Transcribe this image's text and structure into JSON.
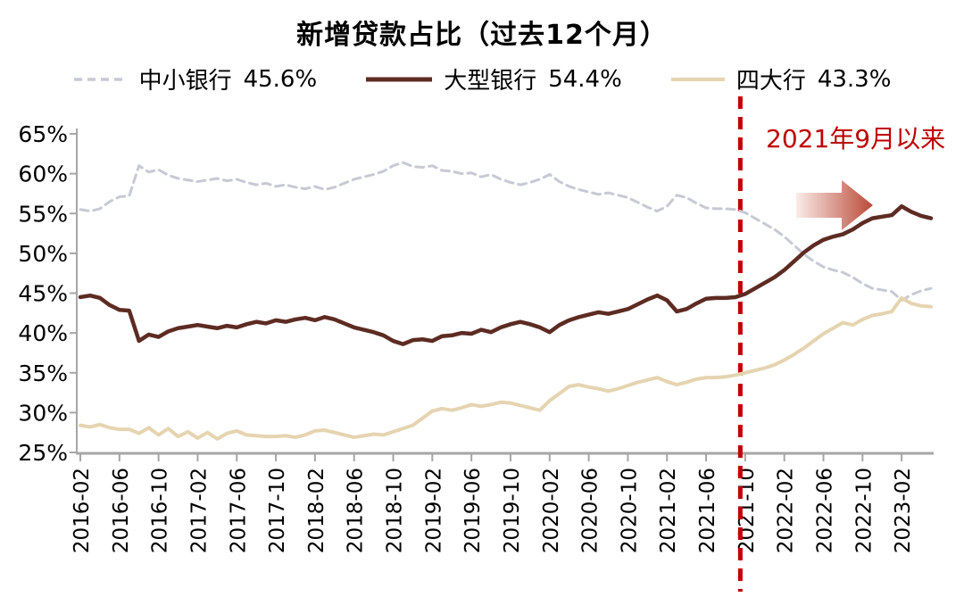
{
  "title": "新增贷款占比（过去12个月）",
  "legend": [
    {
      "label": "中小银行",
      "value": "45.6%"
    },
    {
      "label": "大型银行",
      "value": "54.4%"
    },
    {
      "label": "四大行",
      "value": "43.3%"
    }
  ],
  "colors": {
    "small_mid_banks": "#c7c9d4",
    "large_banks": "#5d2b22",
    "big_four_banks": "#e5d4b0",
    "event_red": "#c00000",
    "axis_gray": "#a6a6a6"
  },
  "chart_data": {
    "type": "line",
    "title": "新增贷款占比（过去12个月）",
    "xlabel": "",
    "ylabel": "",
    "ylim": [
      25,
      65
    ],
    "grid": false,
    "legend_position": "top",
    "y_tick_labels": [
      "65%",
      "60%",
      "55%",
      "50%",
      "45%",
      "40%",
      "35%",
      "30%",
      "25%"
    ],
    "x": [
      "2016-02",
      "2016-03",
      "2016-04",
      "2016-05",
      "2016-06",
      "2016-07",
      "2016-08",
      "2016-09",
      "2016-10",
      "2016-11",
      "2016-12",
      "2017-01",
      "2017-02",
      "2017-03",
      "2017-04",
      "2017-05",
      "2017-06",
      "2017-07",
      "2017-08",
      "2017-09",
      "2017-10",
      "2017-11",
      "2017-12",
      "2018-01",
      "2018-02",
      "2018-03",
      "2018-04",
      "2018-05",
      "2018-06",
      "2018-07",
      "2018-08",
      "2018-09",
      "2018-10",
      "2018-11",
      "2018-12",
      "2019-01",
      "2019-02",
      "2019-03",
      "2019-04",
      "2019-05",
      "2019-06",
      "2019-07",
      "2019-08",
      "2019-09",
      "2019-10",
      "2019-11",
      "2019-12",
      "2020-01",
      "2020-02",
      "2020-03",
      "2020-04",
      "2020-05",
      "2020-06",
      "2020-07",
      "2020-08",
      "2020-09",
      "2020-10",
      "2020-11",
      "2020-12",
      "2021-01",
      "2021-02",
      "2021-03",
      "2021-04",
      "2021-05",
      "2021-06",
      "2021-07",
      "2021-08",
      "2021-09",
      "2021-10",
      "2021-11",
      "2021-12",
      "2022-01",
      "2022-02",
      "2022-03",
      "2022-04",
      "2022-05",
      "2022-06",
      "2022-07",
      "2022-08",
      "2022-09",
      "2022-10",
      "2022-11",
      "2022-12",
      "2023-01",
      "2023-02",
      "2023-03",
      "2023-04",
      "2023-05"
    ],
    "x_tick_labels": [
      "2016-02",
      "2016-06",
      "2016-10",
      "2017-02",
      "2017-06",
      "2017-10",
      "2018-02",
      "2018-06",
      "2018-10",
      "2019-02",
      "2019-06",
      "2019-10",
      "2020-02",
      "2020-06",
      "2020-10",
      "2021-02",
      "2021-06",
      "2021-10",
      "2022-02",
      "2022-06",
      "2022-10",
      "2023-02"
    ],
    "series": [
      {
        "key": "small-mid-banks",
        "name": "中小银行",
        "current": "45.6%",
        "color": "#c7c9d4",
        "style": "dashed",
        "width": 3,
        "values": [
          55.5,
          55.3,
          55.6,
          56.5,
          57.1,
          57.2,
          61.0,
          60.2,
          60.5,
          59.8,
          59.4,
          59.2,
          59.0,
          59.2,
          59.4,
          59.1,
          59.3,
          58.9,
          58.6,
          58.8,
          58.4,
          58.6,
          58.3,
          58.1,
          58.4,
          58.0,
          58.3,
          58.8,
          59.3,
          59.6,
          59.9,
          60.3,
          61.0,
          61.4,
          60.9,
          60.8,
          61.0,
          60.4,
          60.3,
          60.0,
          60.1,
          59.6,
          59.9,
          59.3,
          58.9,
          58.6,
          58.9,
          59.3,
          59.9,
          59.0,
          58.4,
          58.0,
          57.7,
          57.4,
          57.6,
          57.3,
          57.0,
          56.4,
          55.8,
          55.3,
          55.9,
          57.3,
          57.0,
          56.3,
          55.7,
          55.6,
          55.6,
          55.5,
          55.1,
          54.4,
          53.7,
          53.0,
          52.1,
          51.0,
          49.9,
          49.0,
          48.3,
          47.9,
          47.6,
          47.0,
          46.2,
          45.6,
          45.4,
          45.2,
          44.1,
          44.8,
          45.3,
          45.6
        ]
      },
      {
        "key": "large-banks",
        "name": "大型银行",
        "current": "54.4%",
        "color": "#5d2b22",
        "style": "solid",
        "width": 4.5,
        "values": [
          44.5,
          44.7,
          44.4,
          43.5,
          42.9,
          42.8,
          39.0,
          39.8,
          39.5,
          40.2,
          40.6,
          40.8,
          41.0,
          40.8,
          40.6,
          40.9,
          40.7,
          41.1,
          41.4,
          41.2,
          41.6,
          41.4,
          41.7,
          41.9,
          41.6,
          42.0,
          41.7,
          41.2,
          40.7,
          40.4,
          40.1,
          39.7,
          39.0,
          38.6,
          39.1,
          39.2,
          39.0,
          39.6,
          39.7,
          40.0,
          39.9,
          40.4,
          40.1,
          40.7,
          41.1,
          41.4,
          41.1,
          40.7,
          40.1,
          41.0,
          41.6,
          42.0,
          42.3,
          42.6,
          42.4,
          42.7,
          43.0,
          43.6,
          44.2,
          44.7,
          44.1,
          42.7,
          43.0,
          43.7,
          44.3,
          44.4,
          44.4,
          44.5,
          44.9,
          45.6,
          46.3,
          47.0,
          47.9,
          49.0,
          50.1,
          51.0,
          51.7,
          52.1,
          52.4,
          53.0,
          53.8,
          54.4,
          54.6,
          54.8,
          55.9,
          55.2,
          54.7,
          54.4
        ]
      },
      {
        "key": "big-four-banks",
        "name": "四大行",
        "current": "43.3%",
        "color": "#e5d4b0",
        "style": "solid",
        "width": 4,
        "values": [
          28.4,
          28.2,
          28.5,
          28.1,
          27.9,
          27.9,
          27.4,
          28.1,
          27.2,
          28.0,
          27.0,
          27.6,
          26.8,
          27.5,
          26.7,
          27.4,
          27.7,
          27.2,
          27.1,
          27.0,
          27.0,
          27.1,
          26.9,
          27.2,
          27.7,
          27.8,
          27.5,
          27.2,
          26.9,
          27.1,
          27.3,
          27.2,
          27.6,
          28.0,
          28.4,
          29.3,
          30.2,
          30.5,
          30.3,
          30.6,
          31.0,
          30.8,
          31.0,
          31.3,
          31.2,
          30.9,
          30.6,
          30.3,
          31.5,
          32.4,
          33.3,
          33.5,
          33.2,
          33.0,
          32.7,
          33.0,
          33.4,
          33.8,
          34.1,
          34.4,
          33.9,
          33.5,
          33.8,
          34.2,
          34.4,
          34.4,
          34.5,
          34.7,
          35.0,
          35.3,
          35.6,
          36.0,
          36.6,
          37.3,
          38.1,
          39.0,
          39.9,
          40.6,
          41.3,
          41.0,
          41.7,
          42.2,
          42.4,
          42.7,
          44.4,
          43.7,
          43.4,
          43.3
        ]
      }
    ],
    "vline": {
      "x": "2021-10",
      "label": "2021年9月以来",
      "color": "#c00000",
      "style": "dashed"
    },
    "arrow": {
      "direction": "right",
      "color_from": "#faece8",
      "color_to": "#ba4a38"
    }
  }
}
